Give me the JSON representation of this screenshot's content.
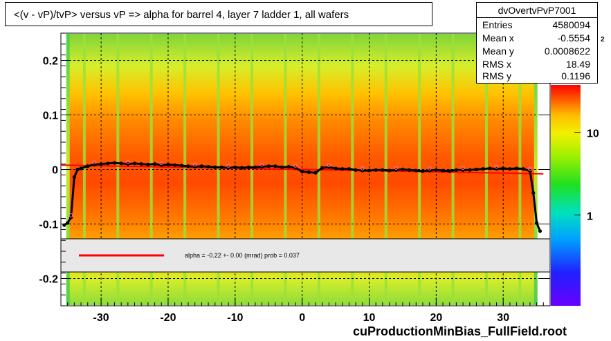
{
  "chart_data": {
    "type": "heatmap",
    "title": "<(v - vP)/tvP> versus   vP => alpha for barrel 4, layer 7 ladder 1, all wafers",
    "xlim": [
      -36,
      37
    ],
    "ylim": [
      -0.25,
      0.25
    ],
    "x_ticks": [
      -30,
      -20,
      -10,
      0,
      10,
      20,
      30
    ],
    "y_ticks": [
      0.2,
      0.1,
      0,
      -0.1,
      -0.2
    ],
    "x_tick_labels": [
      "-30",
      "-20",
      "-10",
      "0",
      "10",
      "20",
      "30"
    ],
    "y_tick_labels": [
      "0.2",
      "0.1",
      "0",
      "-0.1",
      "-0.2"
    ],
    "colorbar_ticks": [
      1,
      10
    ],
    "colorbar_tick_labels": [
      "1",
      "10"
    ],
    "colorbar_top_label": "10",
    "colorbar_top_exponent": "2",
    "grid": true,
    "profile_points": {
      "x": [
        -35.5,
        -35.0,
        -34.5,
        -34,
        -33.5,
        -33,
        -32,
        -31,
        -30,
        -29,
        -28,
        -27,
        -26,
        -25,
        -24,
        -23,
        -22,
        -21,
        -20,
        -19,
        -18,
        -17,
        -16,
        -15,
        -14,
        -13,
        -12,
        -11,
        -10,
        -9,
        -8,
        -7,
        -6,
        -5,
        -4,
        -3,
        -2,
        -1,
        0,
        1,
        2,
        3,
        4,
        5,
        6,
        7,
        8,
        9,
        10,
        11,
        12,
        13,
        14,
        15,
        16,
        17,
        18,
        19,
        20,
        21,
        22,
        23,
        24,
        25,
        26,
        27,
        28,
        29,
        30,
        31,
        32,
        33,
        34,
        34.5,
        35,
        35.5
      ],
      "y": [
        -0.102,
        -0.098,
        -0.088,
        -0.014,
        0.0,
        0.002,
        0.006,
        0.009,
        0.01,
        0.011,
        0.012,
        0.011,
        0.01,
        0.011,
        0.01,
        0.009,
        0.01,
        0.008,
        0.009,
        0.008,
        0.007,
        0.006,
        0.005,
        0.006,
        0.005,
        0.004,
        0.004,
        0.003,
        0.004,
        0.003,
        0.004,
        0.004,
        0.005,
        0.006,
        0.006,
        0.004,
        0.005,
        0.003,
        -0.004,
        -0.005,
        -0.006,
        0.003,
        0.004,
        0.002,
        0.001,
        0.001,
        -0.001,
        -0.002,
        -0.002,
        -0.001,
        -0.001,
        -0.002,
        -0.001,
        0.0,
        -0.001,
        -0.002,
        -0.003,
        -0.002,
        -0.001,
        -0.002,
        -0.003,
        -0.001,
        -0.001,
        -0.001,
        0.0,
        0.001,
        0.002,
        0.001,
        0.002,
        0.001,
        0.002,
        0.001,
        -0.003,
        -0.043,
        -0.098,
        -0.113
      ]
    },
    "fit_line": {
      "x": [
        -36,
        36
      ],
      "y": [
        0.008,
        -0.008
      ]
    },
    "fit_legend": "alpha =   -0.22 +-  0.00 (mrad) prob = 0.037",
    "footer": "cuProductionMinBias_FullField.root"
  },
  "stats": {
    "name": "dvOvertvPvP7001",
    "rows": [
      {
        "key": "Entries",
        "value": "4580094"
      },
      {
        "key": "Mean x",
        "value": "-0.5554"
      },
      {
        "key": "Mean y",
        "value": "0.0008622"
      },
      {
        "key": "RMS x",
        "value": "18.49"
      },
      {
        "key": "RMS y",
        "value": "0.1196"
      }
    ]
  },
  "colors": {
    "fit_line": "#ff0000",
    "points": "#000000",
    "markers_alt": "#ff66cc"
  }
}
